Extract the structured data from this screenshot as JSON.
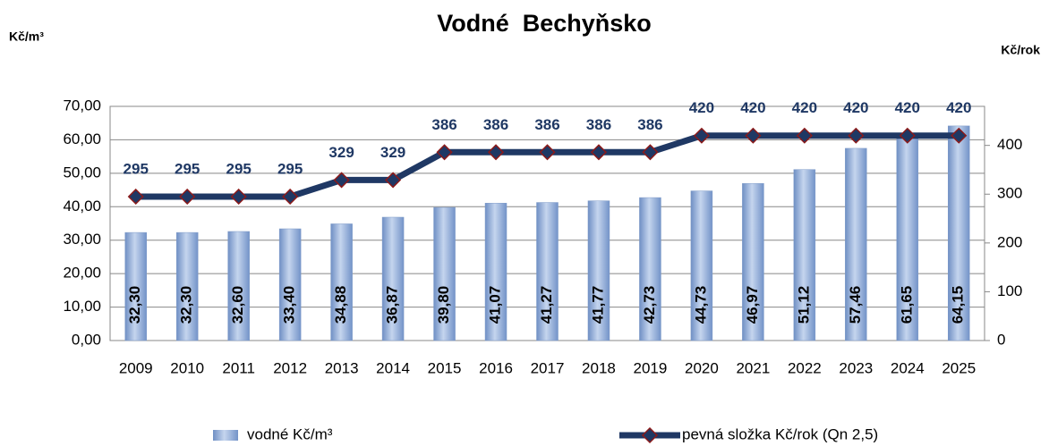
{
  "chart_data": {
    "type": "bar",
    "title": "Vodné  Bechyňsko",
    "y_label": "Kč/m³",
    "y2_label": "Kč/rok",
    "categories": [
      "2009",
      "2010",
      "2011",
      "2012",
      "2013",
      "2014",
      "2015",
      "2016",
      "2017",
      "2018",
      "2019",
      "2020",
      "2021",
      "2022",
      "2023",
      "2024",
      "2025"
    ],
    "series": [
      {
        "name": "vodné Kč/m³",
        "type": "bar",
        "color": "#8eaad6",
        "values": [
          32.3,
          32.3,
          32.6,
          33.4,
          34.88,
          36.87,
          39.8,
          41.07,
          41.27,
          41.77,
          42.73,
          44.73,
          46.97,
          51.12,
          57.46,
          61.65,
          64.15
        ],
        "value_labels": [
          "32,30",
          "32,30",
          "32,60",
          "33,40",
          "34,88",
          "36,87",
          "39,80",
          "41,07",
          "41,27",
          "41,77",
          "42,73",
          "44,73",
          "46,97",
          "51,12",
          "57,46",
          "61,65",
          "64,15"
        ]
      },
      {
        "name": "pevná složka Kč/rok (Qn 2,5)",
        "type": "line",
        "axis": "y2",
        "color": "#1f3864",
        "marker_color": "#8b1a1a",
        "values": [
          295,
          295,
          295,
          295,
          329,
          329,
          386,
          386,
          386,
          386,
          386,
          420,
          420,
          420,
          420,
          420,
          420
        ]
      }
    ],
    "ylim": [
      0,
      70
    ],
    "yticks": [
      {
        "value": 0,
        "label": "0,00"
      },
      {
        "value": 10,
        "label": "10,00"
      },
      {
        "value": 20,
        "label": "20,00"
      },
      {
        "value": 30,
        "label": "30,00"
      },
      {
        "value": 40,
        "label": "40,00"
      },
      {
        "value": 50,
        "label": "50,00"
      },
      {
        "value": 60,
        "label": "60,00"
      },
      {
        "value": 70,
        "label": "70,00"
      }
    ],
    "y2lim": [
      0,
      480
    ],
    "y2ticks": [
      0,
      100,
      200,
      300,
      400
    ],
    "grid": true,
    "legend": "bottom"
  }
}
